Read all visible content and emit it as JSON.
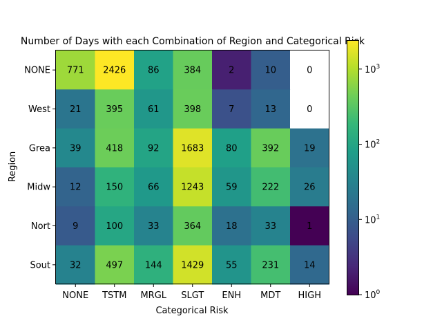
{
  "chart_data": {
    "type": "heatmap",
    "title": "Number of Days with each Combination of Region and Categorical Risk",
    "xlabel": "Categorical Risk",
    "ylabel": "Region",
    "x_categories": [
      "NONE",
      "TSTM",
      "MRGL",
      "SLGT",
      "ENH",
      "MDT",
      "HIGH"
    ],
    "y_categories": [
      "NONE",
      "West",
      "Grea",
      "Midw",
      "Nort",
      "Sout"
    ],
    "values": [
      [
        771,
        2426,
        86,
        384,
        2,
        10,
        0
      ],
      [
        21,
        395,
        61,
        398,
        7,
        13,
        0
      ],
      [
        39,
        418,
        92,
        1683,
        80,
        392,
        19
      ],
      [
        12,
        150,
        66,
        1243,
        59,
        222,
        26
      ],
      [
        9,
        100,
        33,
        364,
        18,
        33,
        1
      ],
      [
        32,
        497,
        144,
        1429,
        55,
        231,
        14
      ]
    ],
    "color_scale": "viridis",
    "log_scale": true,
    "vmin": 1,
    "vmax": 2426,
    "colorbar": {
      "ticks": [
        {
          "value": 1,
          "label": "10^0"
        },
        {
          "value": 10,
          "label": "10^1"
        },
        {
          "value": 100,
          "label": "10^2"
        },
        {
          "value": 1000,
          "label": "10^3"
        }
      ],
      "position": "right"
    },
    "zero_cell_color": "#ffffff",
    "grid": false
  }
}
